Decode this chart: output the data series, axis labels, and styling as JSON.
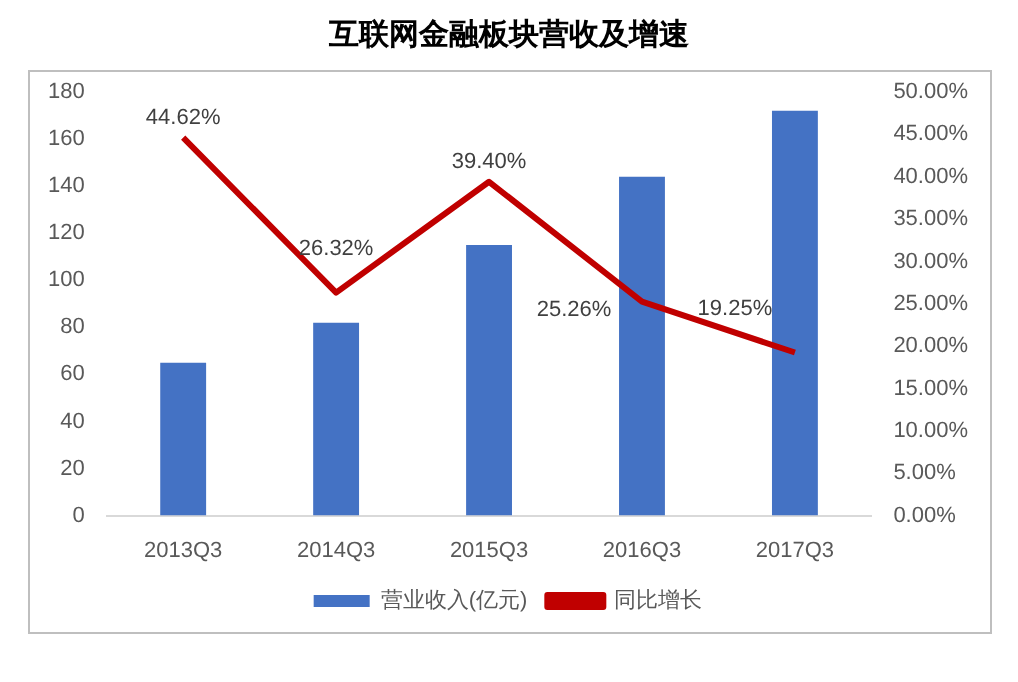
{
  "chart_data": {
    "type": "bar",
    "title": "互联网金融板块营收及增速",
    "categories": [
      "2013Q3",
      "2014Q3",
      "2015Q3",
      "2016Q3",
      "2017Q3"
    ],
    "series": [
      {
        "name": "营业收入(亿元)",
        "color": "#4472c4",
        "values": [
          65,
          82,
          115,
          144,
          172
        ]
      },
      {
        "name": "同比增长",
        "type": "line",
        "axis": "y2",
        "color": "#c00000",
        "values": [
          44.62,
          26.32,
          39.4,
          25.26,
          19.25
        ],
        "value_labels": [
          "44.62%",
          "26.32%",
          "39.40%",
          "25.26%",
          "19.25%"
        ]
      }
    ],
    "ylim": [
      0,
      180
    ],
    "yticks": [
      0,
      20,
      40,
      60,
      80,
      100,
      120,
      140,
      160,
      180
    ],
    "y2lim": [
      0,
      50
    ],
    "y2ticks": [
      {
        "value": 0,
        "label": "0.00%"
      },
      {
        "value": 5,
        "label": "5.00%"
      },
      {
        "value": 10,
        "label": "10.00%"
      },
      {
        "value": 15,
        "label": "15.00%"
      },
      {
        "value": 20,
        "label": "20.00%"
      },
      {
        "value": 25,
        "label": "25.00%"
      },
      {
        "value": 30,
        "label": "30.00%"
      },
      {
        "value": 35,
        "label": "35.00%"
      },
      {
        "value": 40,
        "label": "40.00%"
      },
      {
        "value": 45,
        "label": "45.00%"
      },
      {
        "value": 50,
        "label": "50.00%"
      }
    ],
    "grid": false,
    "legend": "bottom",
    "marker": "none"
  }
}
